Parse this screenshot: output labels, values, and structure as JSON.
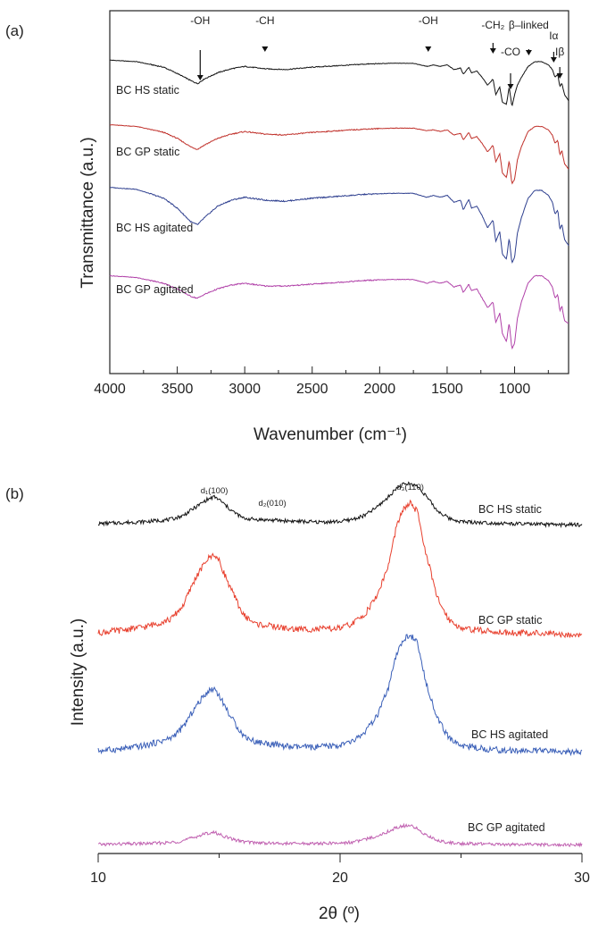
{
  "chart_data": [
    {
      "panel": "(a)",
      "type": "line",
      "xlabel": "Wavenumber (cm⁻¹)",
      "ylabel": "Transmittance (a.u.)",
      "xlim": [
        4000,
        600
      ],
      "x_reversed": true,
      "xticks": [
        4000,
        3500,
        3000,
        2500,
        2000,
        1500,
        1000
      ],
      "x": [
        4000,
        3800,
        3600,
        3500,
        3400,
        3350,
        3300,
        3200,
        3100,
        3000,
        2950,
        2900,
        2850,
        2700,
        2500,
        2300,
        2100,
        1900,
        1750,
        1650,
        1600,
        1550,
        1500,
        1450,
        1400,
        1380,
        1340,
        1320,
        1280,
        1240,
        1200,
        1160,
        1140,
        1110,
        1090,
        1060,
        1040,
        1020,
        1000,
        980,
        950,
        900,
        850,
        800,
        750,
        720,
        700,
        680,
        665,
        650,
        630,
        610,
        600
      ],
      "series": [
        {
          "name": "BC HS static",
          "color": "#111111",
          "values": [
            0.94,
            0.92,
            0.85,
            0.77,
            0.68,
            0.64,
            0.7,
            0.78,
            0.83,
            0.86,
            0.85,
            0.84,
            0.83,
            0.82,
            0.85,
            0.87,
            0.89,
            0.9,
            0.9,
            0.86,
            0.88,
            0.86,
            0.88,
            0.82,
            0.84,
            0.76,
            0.85,
            0.78,
            0.8,
            0.72,
            0.62,
            0.7,
            0.5,
            0.6,
            0.4,
            0.38,
            0.6,
            0.35,
            0.5,
            0.62,
            0.72,
            0.86,
            0.92,
            0.92,
            0.88,
            0.82,
            0.72,
            0.76,
            0.6,
            0.65,
            0.5,
            0.45,
            0.42
          ]
        },
        {
          "name": "BC GP static",
          "color": "#c0302a",
          "values": [
            0.92,
            0.9,
            0.83,
            0.76,
            0.66,
            0.63,
            0.68,
            0.76,
            0.81,
            0.84,
            0.83,
            0.82,
            0.81,
            0.8,
            0.83,
            0.85,
            0.87,
            0.88,
            0.88,
            0.85,
            0.86,
            0.84,
            0.86,
            0.8,
            0.82,
            0.74,
            0.83,
            0.76,
            0.78,
            0.7,
            0.6,
            0.68,
            0.48,
            0.58,
            0.35,
            0.3,
            0.5,
            0.22,
            0.28,
            0.5,
            0.66,
            0.84,
            0.9,
            0.9,
            0.86,
            0.8,
            0.7,
            0.74,
            0.56,
            0.62,
            0.46,
            0.42,
            0.4
          ]
        },
        {
          "name": "BC HS agitated",
          "color": "#2e3f8f",
          "values": [
            0.93,
            0.91,
            0.82,
            0.72,
            0.58,
            0.55,
            0.62,
            0.74,
            0.8,
            0.83,
            0.82,
            0.81,
            0.8,
            0.79,
            0.82,
            0.84,
            0.86,
            0.87,
            0.87,
            0.83,
            0.85,
            0.83,
            0.85,
            0.78,
            0.8,
            0.7,
            0.81,
            0.72,
            0.74,
            0.64,
            0.52,
            0.6,
            0.38,
            0.48,
            0.25,
            0.2,
            0.42,
            0.16,
            0.22,
            0.46,
            0.62,
            0.82,
            0.9,
            0.9,
            0.85,
            0.78,
            0.66,
            0.7,
            0.5,
            0.56,
            0.4,
            0.36,
            0.34
          ]
        },
        {
          "name": "BC GP agitated",
          "color": "#b040a8",
          "values": [
            0.9,
            0.88,
            0.82,
            0.76,
            0.68,
            0.66,
            0.7,
            0.76,
            0.8,
            0.82,
            0.81,
            0.8,
            0.79,
            0.79,
            0.81,
            0.83,
            0.85,
            0.86,
            0.86,
            0.82,
            0.84,
            0.82,
            0.84,
            0.78,
            0.8,
            0.72,
            0.81,
            0.74,
            0.76,
            0.66,
            0.56,
            0.62,
            0.4,
            0.5,
            0.28,
            0.2,
            0.4,
            0.12,
            0.18,
            0.44,
            0.62,
            0.82,
            0.9,
            0.9,
            0.85,
            0.78,
            0.66,
            0.7,
            0.52,
            0.58,
            0.42,
            0.4,
            0.4
          ]
        }
      ],
      "annotations": [
        {
          "text": "-OH",
          "x": 3330
        },
        {
          "text": "-CH",
          "x": 2850
        },
        {
          "text": "-OH",
          "x": 1640
        },
        {
          "text": "-CH₂",
          "x": 1160
        },
        {
          "text": "-CO",
          "x": 1030
        },
        {
          "text": "β–linked",
          "x": 895
        },
        {
          "text": "Iα",
          "x": 710
        },
        {
          "text": "Iβ",
          "x": 665
        }
      ]
    },
    {
      "panel": "(b)",
      "type": "line",
      "xlabel": "2θ (º)",
      "ylabel": "Intensity (a.u.)",
      "xlim": [
        10,
        30
      ],
      "xticks": [
        10,
        20,
        30
      ],
      "x": [
        10,
        11,
        12,
        13,
        13.5,
        14,
        14.5,
        14.8,
        15,
        15.5,
        16,
        16.5,
        17,
        17.5,
        18,
        19,
        20,
        20.5,
        21,
        21.5,
        22,
        22.3,
        22.6,
        22.9,
        23.2,
        23.5,
        24,
        24.5,
        25,
        26,
        27,
        28,
        29,
        30
      ],
      "series": [
        {
          "name": "BC HS static",
          "color": "#111111",
          "values": [
            0.1,
            0.12,
            0.14,
            0.18,
            0.25,
            0.4,
            0.55,
            0.6,
            0.55,
            0.35,
            0.2,
            0.18,
            0.17,
            0.16,
            0.15,
            0.13,
            0.14,
            0.18,
            0.25,
            0.4,
            0.6,
            0.75,
            0.83,
            0.85,
            0.8,
            0.65,
            0.35,
            0.2,
            0.14,
            0.12,
            0.1,
            0.09,
            0.08,
            0.08
          ]
        },
        {
          "name": "BC GP static",
          "color": "#e8402e",
          "values": [
            0.1,
            0.13,
            0.17,
            0.25,
            0.4,
            0.7,
            0.92,
            0.98,
            0.9,
            0.58,
            0.3,
            0.2,
            0.18,
            0.16,
            0.14,
            0.14,
            0.15,
            0.2,
            0.3,
            0.5,
            0.85,
            1.25,
            1.48,
            1.55,
            1.45,
            1.05,
            0.5,
            0.25,
            0.15,
            0.12,
            0.1,
            0.1,
            0.08,
            0.08
          ]
        },
        {
          "name": "BC HS agitated",
          "color": "#3a5fb8",
          "values": [
            0.08,
            0.1,
            0.14,
            0.22,
            0.34,
            0.56,
            0.74,
            0.78,
            0.7,
            0.45,
            0.25,
            0.18,
            0.16,
            0.14,
            0.12,
            0.12,
            0.14,
            0.18,
            0.28,
            0.45,
            0.78,
            1.12,
            1.32,
            1.38,
            1.28,
            0.9,
            0.45,
            0.22,
            0.14,
            0.1,
            0.08,
            0.08,
            0.07,
            0.06
          ]
        },
        {
          "name": "BC GP agitated",
          "color": "#c060b0",
          "values": [
            0.06,
            0.07,
            0.08,
            0.1,
            0.14,
            0.22,
            0.3,
            0.32,
            0.28,
            0.18,
            0.12,
            0.1,
            0.09,
            0.08,
            0.08,
            0.08,
            0.09,
            0.11,
            0.16,
            0.24,
            0.34,
            0.42,
            0.46,
            0.46,
            0.4,
            0.28,
            0.15,
            0.1,
            0.08,
            0.07,
            0.06,
            0.06,
            0.05,
            0.05
          ]
        }
      ],
      "annotations": [
        {
          "text": "d₁(100)",
          "x": 14.8
        },
        {
          "text": "d₂(010)",
          "x": 17.2
        },
        {
          "text": "d₃(110)",
          "x": 22.9
        }
      ]
    }
  ]
}
